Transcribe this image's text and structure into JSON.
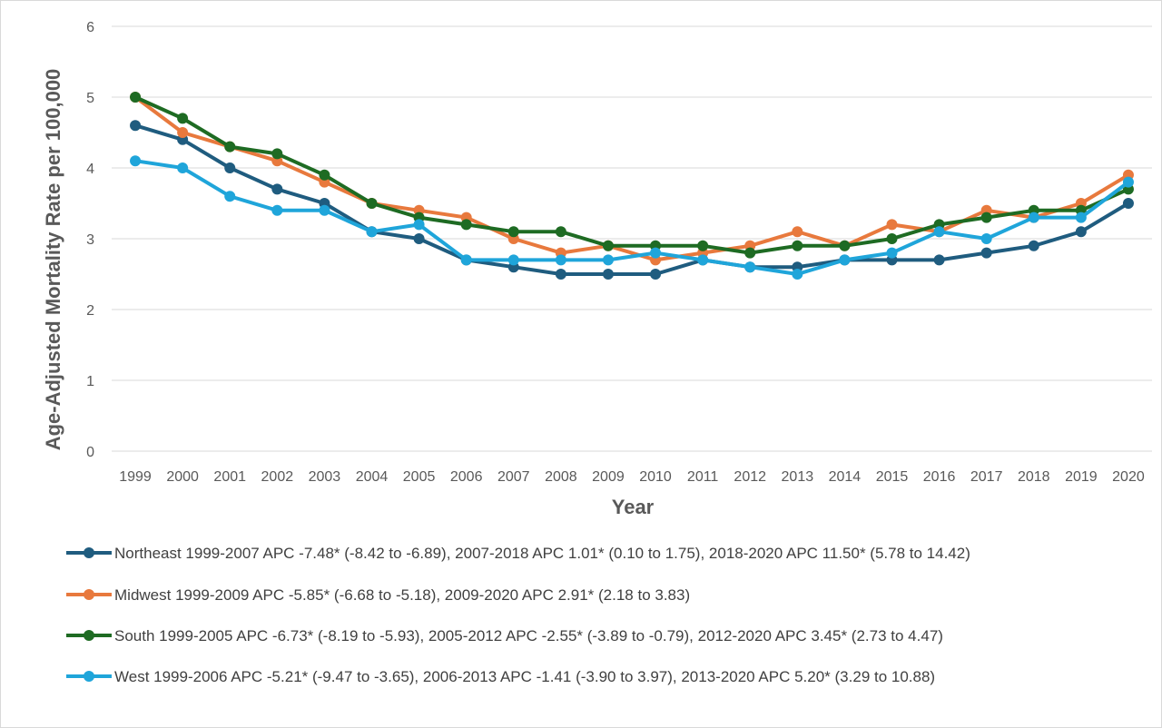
{
  "chart_data": {
    "type": "line",
    "title": "",
    "xlabel": "Year",
    "ylabel": "Age-Adjusted Mortality Rate per 100,000",
    "ylim": [
      0,
      6
    ],
    "yticks": [
      "0",
      "1",
      "2",
      "3",
      "4",
      "5",
      "6"
    ],
    "grid": true,
    "legend_position": "bottom",
    "categories": [
      "1999",
      "2000",
      "2001",
      "2002",
      "2003",
      "2004",
      "2005",
      "2006",
      "2007",
      "2008",
      "2009",
      "2010",
      "2011",
      "2012",
      "2013",
      "2014",
      "2015",
      "2016",
      "2017",
      "2018",
      "2019",
      "2020"
    ],
    "series": [
      {
        "name": "Northeast 1999-2007 APC -7.48* (-8.42 to -6.89), 2007-2018 APC 1.01* (0.10 to 1.75), 2018-2020 APC 11.50* (5.78 to 14.42)",
        "color": "#1f5c7f",
        "values": [
          4.6,
          4.4,
          4.0,
          3.7,
          3.5,
          3.1,
          3.0,
          2.7,
          2.6,
          2.5,
          2.5,
          2.5,
          2.7,
          2.6,
          2.6,
          2.7,
          2.7,
          2.7,
          2.8,
          2.9,
          3.1,
          3.5
        ]
      },
      {
        "name": "Midwest 1999-2009 APC -5.85* (-6.68 to -5.18), 2009-2020 APC 2.91* (2.18 to 3.83)",
        "color": "#e8793d",
        "values": [
          5.0,
          4.5,
          4.3,
          4.1,
          3.8,
          3.5,
          3.4,
          3.3,
          3.0,
          2.8,
          2.9,
          2.7,
          2.8,
          2.9,
          3.1,
          2.9,
          3.2,
          3.1,
          3.4,
          3.3,
          3.5,
          3.9
        ]
      },
      {
        "name": "South 1999-2005 APC -6.73* (-8.19 to -5.93), 2005-2012 APC -2.55* (-3.89 to -0.79), 2012-2020 APC 3.45* (2.73 to 4.47)",
        "color": "#1e6b23",
        "values": [
          5.0,
          4.7,
          4.3,
          4.2,
          3.9,
          3.5,
          3.3,
          3.2,
          3.1,
          3.1,
          2.9,
          2.9,
          2.9,
          2.8,
          2.9,
          2.9,
          3.0,
          3.2,
          3.3,
          3.4,
          3.4,
          3.7
        ]
      },
      {
        "name": "West 1999-2006 APC -5.21* (-9.47 to -3.65), 2006-2013 APC -1.41 (-3.90 to 3.97), 2013-2020 APC 5.20* (3.29 to 10.88)",
        "color": "#1fa5da",
        "values": [
          4.1,
          4.0,
          3.6,
          3.4,
          3.4,
          3.1,
          3.2,
          2.7,
          2.7,
          2.7,
          2.7,
          2.8,
          2.7,
          2.6,
          2.5,
          2.7,
          2.8,
          3.1,
          3.0,
          3.3,
          3.3,
          3.8
        ]
      }
    ]
  }
}
